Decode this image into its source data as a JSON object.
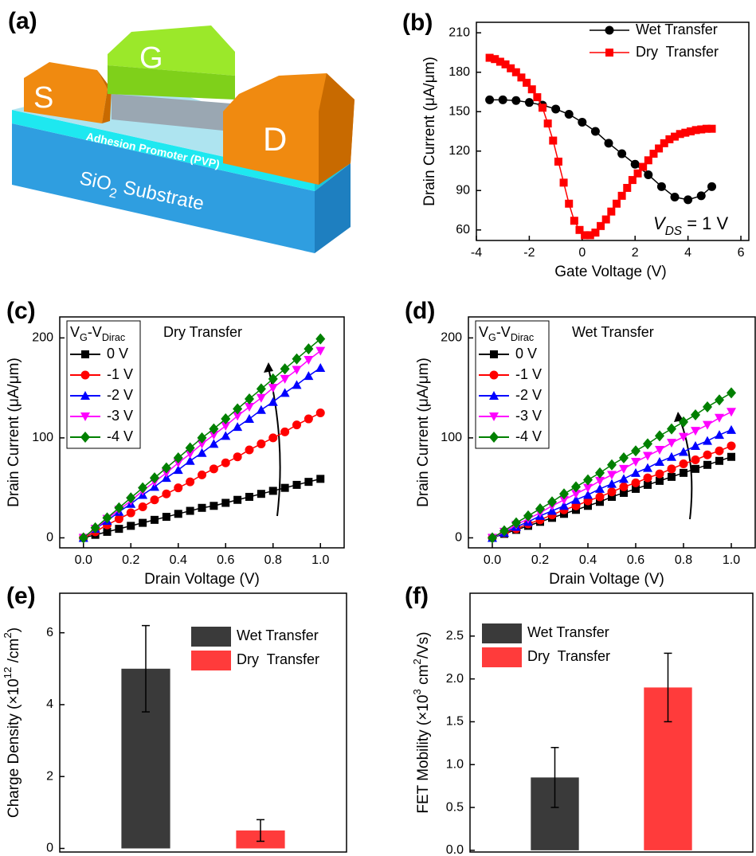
{
  "panel_a": {
    "panel_label": "(a)",
    "labels": {
      "source": "S",
      "gate": "G",
      "drain": "D",
      "promoter": "Adhesion Promoter (PVP)",
      "substrate": [
        "SiO",
        "2",
        " Substrate"
      ]
    }
  },
  "chart_data": [
    {
      "type": "line",
      "panel_label": "(b)",
      "xlabel": "Gate Voltage (V)",
      "ylabel": "Drain Current (μA/μm)",
      "annotation": [
        "V",
        "DS",
        " = 1 V"
      ],
      "xlim": [
        -4,
        6.3
      ],
      "ylim": [
        52,
        218
      ],
      "xticks": [
        -4,
        -2,
        0,
        2,
        4,
        6
      ],
      "yticks": [
        60,
        90,
        120,
        150,
        180,
        210
      ],
      "legend": "upper right",
      "series": [
        {
          "name": "Wet Transfer",
          "color": "#000000",
          "marker": "circle",
          "x": [
            -3.5,
            -3,
            -2.5,
            -2,
            -1.5,
            -1,
            -0.5,
            0,
            0.5,
            1,
            1.5,
            2,
            2.5,
            3,
            3.5,
            4,
            4.5,
            4.9
          ],
          "values": [
            159,
            159,
            158.5,
            157,
            155,
            152,
            148,
            142,
            135,
            126,
            118,
            110,
            102,
            93,
            85,
            83,
            86,
            93
          ]
        },
        {
          "name": "Dry  Transfer",
          "color": "#ff0000",
          "marker": "square",
          "x": [
            -3.5,
            -3.3,
            -3.1,
            -2.9,
            -2.7,
            -2.5,
            -2.3,
            -2.1,
            -1.9,
            -1.7,
            -1.5,
            -1.3,
            -1.1,
            -0.9,
            -0.7,
            -0.5,
            -0.3,
            -0.1,
            0.1,
            0.3,
            0.5,
            0.7,
            0.9,
            1.1,
            1.3,
            1.5,
            1.7,
            1.9,
            2.1,
            2.3,
            2.5,
            2.7,
            2.9,
            3.1,
            3.3,
            3.5,
            3.7,
            3.9,
            4.1,
            4.3,
            4.5,
            4.7,
            4.9
          ],
          "values": [
            191,
            190,
            188,
            186,
            183,
            180,
            176,
            172,
            167,
            161,
            153,
            141,
            128,
            112,
            96,
            80,
            67,
            60,
            56,
            56,
            58,
            63,
            68,
            74,
            80,
            86,
            92,
            98,
            103,
            108,
            113,
            118,
            122,
            126,
            129,
            131,
            133,
            134,
            135,
            136,
            136.5,
            137,
            137
          ]
        }
      ]
    },
    {
      "type": "line",
      "panel_label": "(c)",
      "title": "Dry Transfer",
      "xlabel": "Drain Voltage (V)",
      "ylabel": "Drain Current (μA/μm)",
      "legend_title": [
        "V",
        "G",
        "-V",
        "Dirac"
      ],
      "xlim": [
        -0.1,
        1.1
      ],
      "ylim": [
        -10,
        221
      ],
      "xticks": [
        {
          "value": 0,
          "label": "0.0"
        },
        {
          "value": 0.2,
          "label": "0.2"
        },
        {
          "value": 0.4,
          "label": "0.4"
        },
        {
          "value": 0.6,
          "label": "0.6"
        },
        {
          "value": 0.8,
          "label": "0.8"
        },
        {
          "value": 1,
          "label": "1.0"
        }
      ],
      "yticks": [
        0,
        100,
        200
      ],
      "legend": "upper left",
      "x": [
        0,
        0.05,
        0.1,
        0.15,
        0.2,
        0.25,
        0.3,
        0.35,
        0.4,
        0.45,
        0.5,
        0.55,
        0.6,
        0.65,
        0.7,
        0.75,
        0.8,
        0.85,
        0.9,
        0.95,
        1
      ],
      "series": [
        {
          "name": "0 V",
          "color": "#000000",
          "marker": "square",
          "values": [
            0,
            3,
            6,
            9,
            12,
            15,
            18,
            21,
            24,
            27,
            30,
            32,
            35,
            38,
            41,
            44,
            47,
            50,
            53,
            56,
            59
          ]
        },
        {
          "name": "-1 V",
          "color": "#ff0000",
          "marker": "circle",
          "values": [
            0,
            6,
            13,
            19,
            25,
            31,
            38,
            44,
            50,
            56,
            63,
            69,
            75,
            81,
            88,
            94,
            100,
            106,
            113,
            119,
            125
          ]
        },
        {
          "name": "-2 V",
          "color": "#0000ff",
          "marker": "triangle-up",
          "values": [
            0,
            9,
            17,
            26,
            34,
            43,
            51,
            60,
            68,
            77,
            85,
            94,
            102,
            111,
            119,
            128,
            136,
            145,
            153,
            162,
            170
          ]
        },
        {
          "name": "-3 V",
          "color": "#ff00ff",
          "marker": "triangle-down",
          "values": [
            0,
            9,
            19,
            28,
            37,
            47,
            56,
            65,
            75,
            84,
            94,
            103,
            112,
            122,
            131,
            140,
            150,
            159,
            168,
            178,
            187
          ]
        },
        {
          "name": "-4 V",
          "color": "#008000",
          "marker": "diamond",
          "values": [
            0,
            10,
            20,
            30,
            40,
            50,
            60,
            70,
            80,
            90,
            100,
            109,
            119,
            129,
            139,
            149,
            159,
            169,
            179,
            189,
            199
          ]
        }
      ]
    },
    {
      "type": "line",
      "panel_label": "(d)",
      "title": "Wet Transfer",
      "xlabel": "Drain Voltage (V)",
      "ylabel": "Drain Current (μA/μm)",
      "legend_title": [
        "V",
        "G",
        "-V",
        "Dirac"
      ],
      "xlim": [
        -0.1,
        1.1
      ],
      "ylim": [
        -10,
        221
      ],
      "xticks": [
        {
          "value": 0,
          "label": "0.0"
        },
        {
          "value": 0.2,
          "label": "0.2"
        },
        {
          "value": 0.4,
          "label": "0.4"
        },
        {
          "value": 0.6,
          "label": "0.6"
        },
        {
          "value": 0.8,
          "label": "0.8"
        },
        {
          "value": 1,
          "label": "1.0"
        }
      ],
      "yticks": [
        0,
        100,
        200
      ],
      "legend": "upper left",
      "x": [
        0,
        0.05,
        0.1,
        0.15,
        0.2,
        0.25,
        0.3,
        0.35,
        0.4,
        0.45,
        0.5,
        0.55,
        0.6,
        0.65,
        0.7,
        0.75,
        0.8,
        0.85,
        0.9,
        0.95,
        1
      ],
      "series": [
        {
          "name": "0 V",
          "color": "#000000",
          "marker": "square",
          "values": [
            0,
            4,
            8,
            12,
            16,
            20,
            24,
            28,
            32,
            36,
            41,
            45,
            49,
            53,
            57,
            61,
            65,
            69,
            73,
            77,
            81
          ]
        },
        {
          "name": "-1 V",
          "color": "#ff0000",
          "marker": "circle",
          "values": [
            0,
            5,
            9,
            14,
            18,
            23,
            28,
            32,
            37,
            41,
            46,
            51,
            55,
            60,
            64,
            69,
            74,
            78,
            83,
            87,
            92
          ]
        },
        {
          "name": "-2 V",
          "color": "#0000ff",
          "marker": "triangle-up",
          "values": [
            0,
            5,
            11,
            16,
            22,
            27,
            32,
            38,
            43,
            49,
            54,
            59,
            65,
            70,
            76,
            81,
            86,
            92,
            97,
            103,
            108
          ]
        },
        {
          "name": "-3 V",
          "color": "#ff00ff",
          "marker": "triangle-down",
          "values": [
            0,
            6,
            13,
            19,
            25,
            32,
            38,
            44,
            50,
            57,
            63,
            69,
            76,
            82,
            88,
            95,
            101,
            107,
            113,
            120,
            126
          ]
        },
        {
          "name": "-4 V",
          "color": "#008000",
          "marker": "diamond",
          "values": [
            0,
            7,
            15,
            22,
            29,
            36,
            44,
            51,
            58,
            65,
            73,
            80,
            87,
            94,
            102,
            109,
            116,
            123,
            131,
            138,
            145
          ]
        }
      ]
    },
    {
      "type": "bar",
      "panel_label": "(e)",
      "ylabel": [
        "Charge Density (×10",
        "12",
        " /cm",
        "2",
        ")"
      ],
      "categories": [
        null,
        null
      ],
      "ylim": [
        -0.1,
        7.1
      ],
      "yticks": [
        0,
        2,
        4,
        6
      ],
      "legend": "upper right",
      "series": [
        {
          "name": "Wet Transfer",
          "color": "#3a3a3a",
          "values": [
            5.0,
            null
          ],
          "errors": [
            1.2,
            null
          ]
        },
        {
          "name": "Dry  Transfer",
          "color": "#ff3b3b",
          "values": [
            null,
            0.5
          ],
          "errors": [
            null,
            0.3
          ]
        }
      ]
    },
    {
      "type": "bar",
      "panel_label": "(f)",
      "ylabel": [
        "FET Mobility (×10",
        "3",
        " cm",
        "2",
        "/Vs)"
      ],
      "categories": [
        null,
        null
      ],
      "ylim": [
        -0.02,
        3.0
      ],
      "yticks": [
        {
          "value": 0,
          "label": "0.0"
        },
        {
          "value": 0.5,
          "label": "0.5"
        },
        {
          "value": 1,
          "label": "1.0"
        },
        {
          "value": 1.5,
          "label": "1.5"
        },
        {
          "value": 2,
          "label": "2.0"
        },
        {
          "value": 2.5,
          "label": "2.5"
        }
      ],
      "legend": "upper left",
      "series": [
        {
          "name": "Wet Transfer",
          "color": "#3a3a3a",
          "values": [
            0.85,
            null
          ],
          "errors": [
            0.35,
            null
          ]
        },
        {
          "name": "Dry  Transfer",
          "color": "#ff3b3b",
          "values": [
            null,
            1.9
          ],
          "errors": [
            null,
            0.4
          ]
        }
      ]
    }
  ]
}
